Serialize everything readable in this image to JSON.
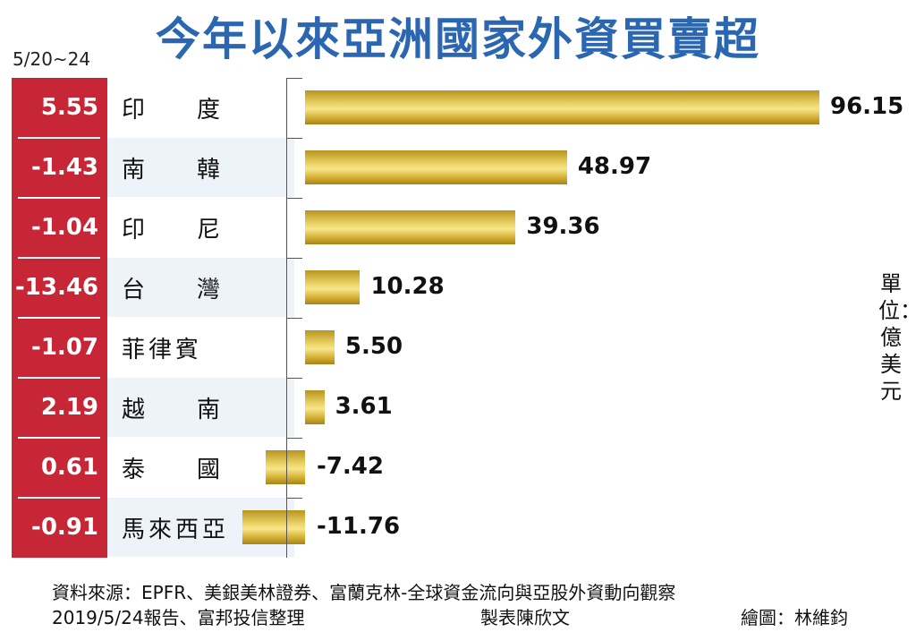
{
  "title": "今年以來亞洲國家外資買賣超",
  "week_label": "5/20~24",
  "unit_label": "單位：億美元",
  "source_line1": "資料來源：EPFR、美銀美林證券、富蘭克林-全球資金流向與亞股外資動向觀察",
  "source_line2": "2019/5/24報告、富邦投信整理",
  "maker": "製表陳欣文",
  "artist": "繪圖：林維鈞",
  "colors": {
    "title": "#2b66b1",
    "week_column": "#c62635",
    "bar": "#e8cc55"
  },
  "chart_data": {
    "type": "bar",
    "orientation": "horizontal",
    "categories": [
      "印　度",
      "南　韓",
      "印　尼",
      "台　灣",
      "菲律賓",
      "越　南",
      "泰　國",
      "馬來西亞"
    ],
    "ytd_values": [
      96.15,
      48.97,
      39.36,
      10.28,
      5.5,
      3.61,
      -7.42,
      -11.76
    ],
    "ytd_labels": [
      "96.15",
      "48.97",
      "39.36",
      "10.28",
      "5.50",
      "3.61",
      "-7.42",
      "-11.76"
    ],
    "week_values": [
      5.55,
      -1.43,
      -1.04,
      -13.46,
      -1.07,
      2.19,
      0.61,
      -0.91
    ],
    "week_labels": [
      "5.55",
      "-1.43",
      "-1.04",
      "-13.46",
      "-1.07",
      "2.19",
      "0.61",
      "-0.91"
    ],
    "xlim": [
      -13,
      96.15
    ]
  }
}
